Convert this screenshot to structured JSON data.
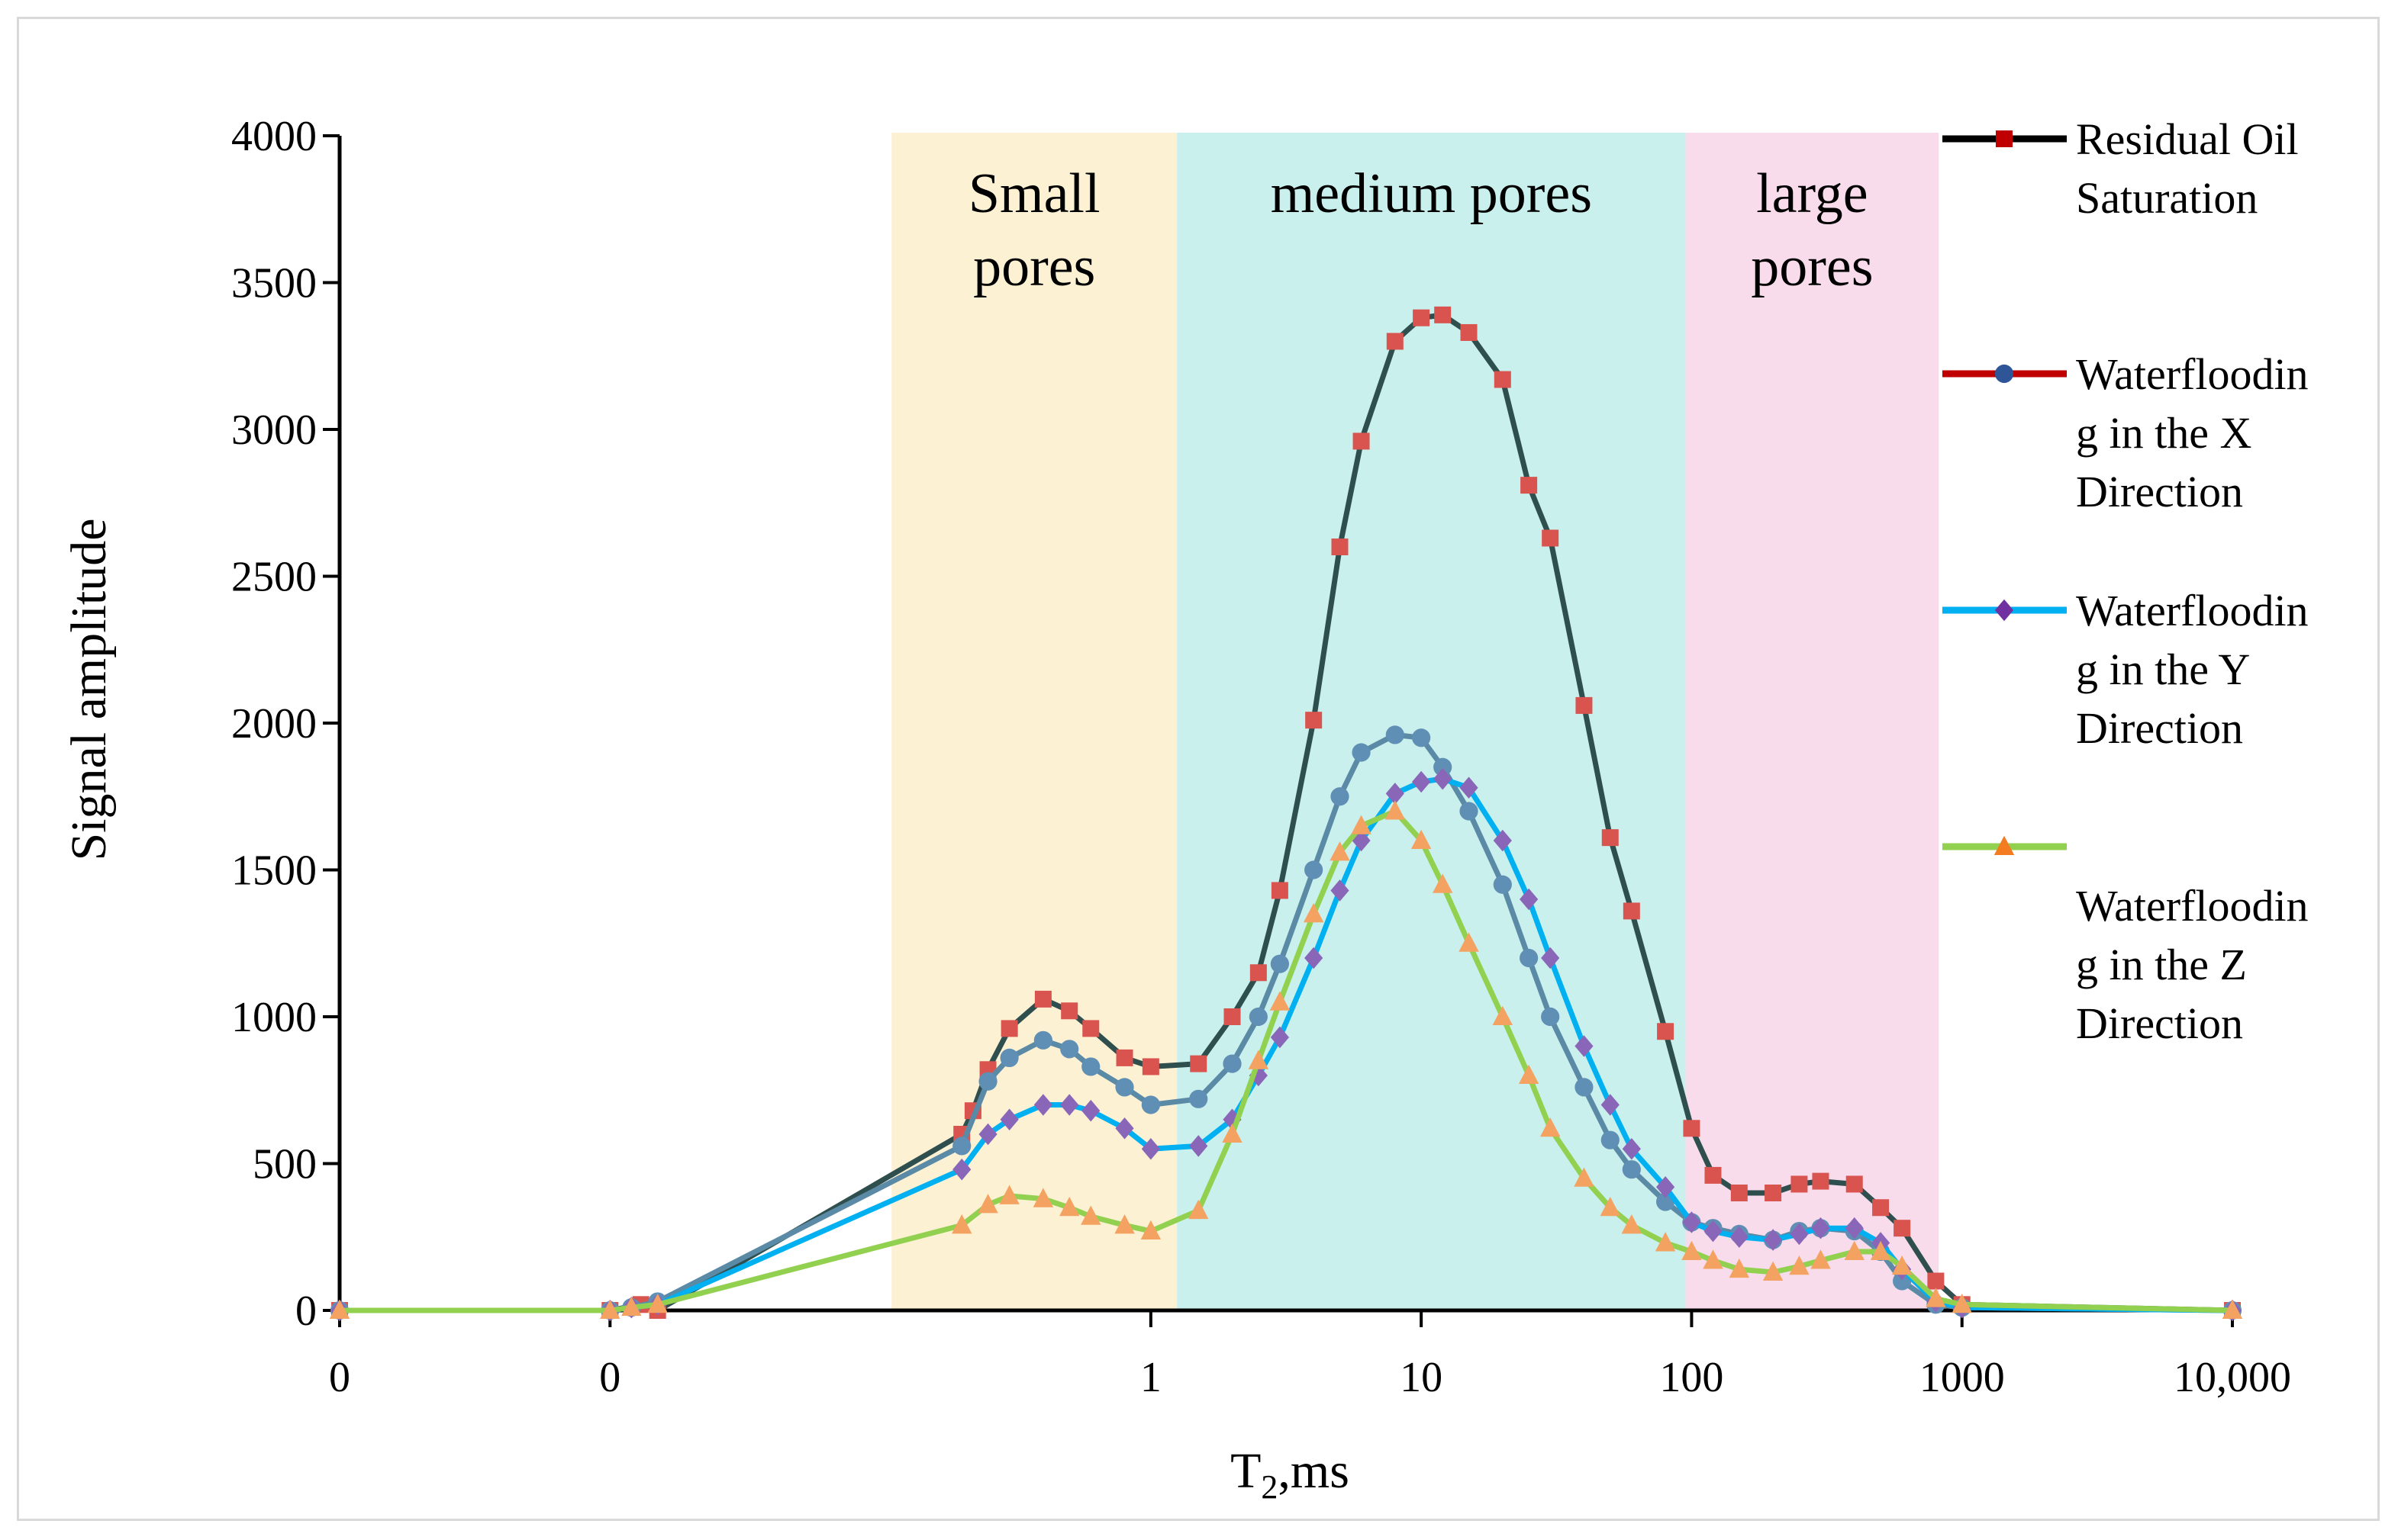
{
  "chart_data": {
    "type": "line",
    "xlabel": "T2,ms",
    "xlabel_main": "T",
    "xlabel_sub": "2",
    "xlabel_rest": ",ms",
    "ylabel": "Signal amplitude",
    "x_scale": "log10",
    "xlim": [
      0.001,
      10000
    ],
    "ylim": [
      0,
      4000
    ],
    "x_tick_values": [
      0.001,
      0.01,
      1,
      10,
      100,
      1000,
      10000
    ],
    "x_tick_labels": [
      "0",
      "0",
      "1",
      "10",
      "100",
      "1000",
      "10,000"
    ],
    "y_ticks": [
      0,
      500,
      1000,
      1500,
      2000,
      2500,
      3000,
      3500,
      4000
    ],
    "y_tick_labels": [
      "0",
      "500",
      "1000",
      "1500",
      "2000",
      "2500",
      "3000",
      "3500",
      "4000"
    ],
    "regions": [
      {
        "name": "Small pores",
        "label_lines": [
          "Small",
          "pores"
        ],
        "x_range": [
          0.11,
          1.25
        ],
        "color": "#fdf1d4"
      },
      {
        "name": "medium pores",
        "label_lines": [
          "medium pores"
        ],
        "x_range": [
          1.25,
          95
        ],
        "color": "#c9f0ec"
      },
      {
        "name": "large pores",
        "label_lines": [
          "large",
          "pores"
        ],
        "x_range": [
          95,
          820
        ],
        "color": "#f8dcec"
      }
    ],
    "series": [
      {
        "name": "Residual Oil Saturation",
        "legend_lines": [
          "Residual Oil",
          "Saturation"
        ],
        "line_color": "#2f4f4f",
        "legend_line_color": "#000000",
        "marker": "square",
        "marker_color": "#d9534f",
        "x": [
          0.001,
          0.01,
          0.013,
          0.015,
          0.2,
          0.22,
          0.25,
          0.3,
          0.4,
          0.5,
          0.6,
          0.8,
          1.0,
          1.5,
          2.0,
          2.5,
          3.0,
          4.0,
          5.0,
          6.0,
          8.0,
          10.0,
          12.0,
          15.0,
          20.0,
          25.0,
          30.0,
          40.0,
          50.0,
          60.0,
          80.0,
          100.0,
          120.0,
          150.0,
          200.0,
          250.0,
          300.0,
          400.0,
          500.0,
          600.0,
          800.0,
          1000.0,
          10000.0
        ],
        "y": [
          0,
          0,
          20,
          0,
          600,
          680,
          820,
          960,
          1060,
          1020,
          960,
          860,
          830,
          840,
          1000,
          1150,
          1430,
          2010,
          2600,
          2960,
          3300,
          3380,
          3390,
          3330,
          3170,
          2810,
          2630,
          2060,
          1610,
          1360,
          950,
          620,
          460,
          400,
          400,
          430,
          440,
          430,
          350,
          280,
          100,
          20,
          0
        ]
      },
      {
        "name": "Waterflooding in the X Direction",
        "legend_lines": [
          "Waterfloodin",
          "g in the X",
          "Direction"
        ],
        "line_color": "#5b8aa6",
        "legend_line_color": "#c00000",
        "marker": "circle",
        "marker_color": "#5f8fb4",
        "x": [
          0.001,
          0.01,
          0.012,
          0.015,
          0.2,
          0.25,
          0.3,
          0.4,
          0.5,
          0.6,
          0.8,
          1.0,
          1.5,
          2.0,
          2.5,
          3.0,
          4.0,
          5.0,
          6.0,
          8.0,
          10.0,
          12.0,
          15.0,
          20.0,
          25.0,
          30.0,
          40.0,
          50.0,
          60.0,
          80.0,
          100.0,
          120.0,
          150.0,
          200.0,
          250.0,
          300.0,
          400.0,
          500.0,
          600.0,
          800.0,
          1000.0,
          10000.0
        ],
        "y": [
          0,
          0,
          10,
          30,
          560,
          780,
          860,
          920,
          890,
          830,
          760,
          700,
          720,
          840,
          1000,
          1180,
          1500,
          1750,
          1900,
          1960,
          1950,
          1850,
          1700,
          1450,
          1200,
          1000,
          760,
          580,
          480,
          370,
          300,
          280,
          260,
          240,
          270,
          280,
          270,
          200,
          100,
          20,
          10,
          0
        ]
      },
      {
        "name": "Waterflooding in the Y Direction",
        "legend_lines": [
          "Waterfloodin",
          "g in the Y",
          "Direction"
        ],
        "line_color": "#00b0f0",
        "legend_line_color": "#00b0f0",
        "marker": "diamond",
        "marker_color": "#8a66b8",
        "x": [
          0.001,
          0.01,
          0.012,
          0.015,
          0.2,
          0.25,
          0.3,
          0.4,
          0.5,
          0.6,
          0.8,
          1.0,
          1.5,
          2.0,
          2.5,
          3.0,
          4.0,
          5.0,
          6.0,
          8.0,
          10.0,
          12.0,
          15.0,
          20.0,
          25.0,
          30.0,
          40.0,
          50.0,
          60.0,
          80.0,
          100.0,
          120.0,
          150.0,
          200.0,
          250.0,
          300.0,
          400.0,
          500.0,
          600.0,
          800.0,
          1000.0,
          10000.0
        ],
        "y": [
          0,
          0,
          10,
          20,
          480,
          600,
          650,
          700,
          700,
          680,
          620,
          550,
          560,
          650,
          800,
          930,
          1200,
          1430,
          1600,
          1760,
          1800,
          1810,
          1780,
          1600,
          1400,
          1200,
          900,
          700,
          550,
          420,
          300,
          270,
          250,
          240,
          260,
          280,
          280,
          230,
          140,
          30,
          10,
          0
        ]
      },
      {
        "name": "Waterflooding in the Z Direction",
        "legend_lines": [
          "",
          "Waterfloodin",
          "g in the Z",
          "Direction"
        ],
        "line_color": "#92d050",
        "legend_line_color": "#92d050",
        "marker": "triangle",
        "marker_color": "#f4a261",
        "x": [
          0.001,
          0.01,
          0.012,
          0.015,
          0.2,
          0.25,
          0.3,
          0.4,
          0.5,
          0.6,
          0.8,
          1.0,
          1.5,
          2.0,
          2.5,
          3.0,
          4.0,
          5.0,
          6.0,
          8.0,
          10.0,
          12.0,
          15.0,
          20.0,
          25.0,
          30.0,
          40.0,
          50.0,
          60.0,
          80.0,
          100.0,
          120.0,
          150.0,
          200.0,
          250.0,
          300.0,
          400.0,
          500.0,
          600.0,
          800.0,
          1000.0,
          10000.0
        ],
        "y": [
          0,
          0,
          10,
          20,
          290,
          360,
          390,
          380,
          350,
          320,
          290,
          270,
          340,
          600,
          850,
          1050,
          1350,
          1560,
          1650,
          1700,
          1600,
          1450,
          1250,
          1000,
          800,
          620,
          450,
          350,
          290,
          230,
          200,
          170,
          140,
          130,
          150,
          170,
          200,
          200,
          150,
          40,
          20,
          0
        ]
      }
    ]
  }
}
